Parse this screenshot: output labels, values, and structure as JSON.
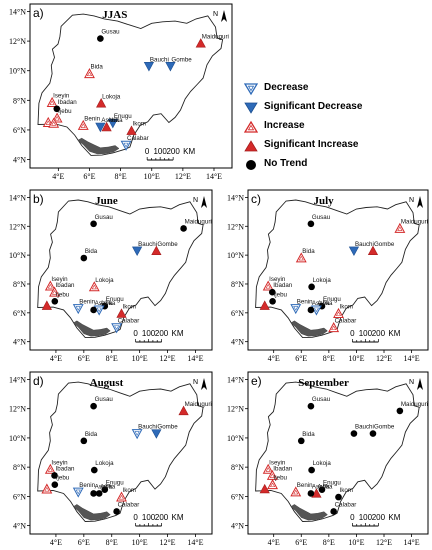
{
  "figure": {
    "panels": [
      {
        "id": "a",
        "letter": "a)",
        "title": "JJAS",
        "show_north": true,
        "stations": [
          {
            "name": "Gusau",
            "lat": 12.17,
            "lon": 6.7,
            "trend": "no-trend"
          },
          {
            "name": "Maiduguri",
            "lat": 11.85,
            "lon": 13.15,
            "trend": "significant-increase"
          },
          {
            "name": "Bauchi",
            "lat": 10.3,
            "lon": 9.82,
            "trend": "significant-decrease"
          },
          {
            "name": "Gombe",
            "lat": 10.3,
            "lon": 11.2,
            "trend": "significant-decrease"
          },
          {
            "name": "Bida",
            "lat": 9.8,
            "lon": 6.0,
            "trend": "increase"
          },
          {
            "name": "Iseyin",
            "lat": 7.85,
            "lon": 3.6,
            "trend": "increase"
          },
          {
            "name": "Ibadan",
            "lat": 7.43,
            "lon": 3.9,
            "trend": "no-trend"
          },
          {
            "name": "Lokoja",
            "lat": 7.8,
            "lon": 6.75,
            "trend": "significant-increase"
          },
          {
            "name": "Ijebu",
            "lat": 6.8,
            "lon": 3.92,
            "trend": "increase"
          },
          {
            "name": "Benin",
            "lat": 6.3,
            "lon": 5.6,
            "trend": "increase"
          },
          {
            "name": "Enugu",
            "lat": 6.46,
            "lon": 7.5,
            "trend": "significant-decrease"
          },
          {
            "name": "Awka",
            "lat": 6.2,
            "lon": 7.1,
            "trend": "significant-increase"
          },
          {
            "name": "Asaba",
            "lat": 6.2,
            "lon": 6.7,
            "trend": "significant-decrease"
          },
          {
            "name": "Ikom",
            "lat": 5.95,
            "lon": 8.7,
            "trend": "significant-increase"
          },
          {
            "name": "Calabar",
            "lat": 4.97,
            "lon": 8.35,
            "trend": "decrease"
          },
          {
            "name": "",
            "lat": 6.5,
            "lon": 3.35,
            "trend": "increase"
          },
          {
            "name": "",
            "lat": 6.45,
            "lon": 3.7,
            "trend": "increase"
          }
        ]
      },
      {
        "id": "b",
        "letter": "b)",
        "title": "June",
        "show_north": true,
        "stations": [
          {
            "name": "Gusau",
            "lat": 12.17,
            "lon": 6.7,
            "trend": "no-trend"
          },
          {
            "name": "Maiduguri",
            "lat": 11.85,
            "lon": 13.15,
            "trend": "no-trend"
          },
          {
            "name": "Bauchi",
            "lat": 10.3,
            "lon": 9.82,
            "trend": "significant-decrease"
          },
          {
            "name": "Gombe",
            "lat": 10.3,
            "lon": 11.2,
            "trend": "significant-increase"
          },
          {
            "name": "Bida",
            "lat": 9.8,
            "lon": 6.0,
            "trend": "no-trend"
          },
          {
            "name": "Iseyin",
            "lat": 7.85,
            "lon": 3.6,
            "trend": "increase"
          },
          {
            "name": "Ibadan",
            "lat": 7.43,
            "lon": 3.9,
            "trend": "increase"
          },
          {
            "name": "Lokoja",
            "lat": 7.8,
            "lon": 6.75,
            "trend": "increase"
          },
          {
            "name": "Ijebu",
            "lat": 6.8,
            "lon": 3.92,
            "trend": "no-trend"
          },
          {
            "name": "Benin",
            "lat": 6.3,
            "lon": 5.6,
            "trend": "decrease"
          },
          {
            "name": "Enugu",
            "lat": 6.46,
            "lon": 7.5,
            "trend": "no-trend"
          },
          {
            "name": "Awka",
            "lat": 6.2,
            "lon": 7.1,
            "trend": "decrease"
          },
          {
            "name": "Asaba",
            "lat": 6.2,
            "lon": 6.7,
            "trend": "no-trend"
          },
          {
            "name": "Ikom",
            "lat": 5.95,
            "lon": 8.7,
            "trend": "significant-increase"
          },
          {
            "name": "Calabar",
            "lat": 4.97,
            "lon": 8.35,
            "trend": "decrease"
          },
          {
            "name": "",
            "lat": 6.5,
            "lon": 3.35,
            "trend": "significant-increase"
          }
        ]
      },
      {
        "id": "c",
        "letter": "c)",
        "title": "July",
        "show_north": true,
        "stations": [
          {
            "name": "Gusau",
            "lat": 12.17,
            "lon": 6.7,
            "trend": "no-trend"
          },
          {
            "name": "Maiduguri",
            "lat": 11.85,
            "lon": 13.15,
            "trend": "increase"
          },
          {
            "name": "Bauchi",
            "lat": 10.3,
            "lon": 9.82,
            "trend": "significant-decrease"
          },
          {
            "name": "Gombe",
            "lat": 10.3,
            "lon": 11.2,
            "trend": "significant-increase"
          },
          {
            "name": "Bida",
            "lat": 9.8,
            "lon": 6.0,
            "trend": "increase"
          },
          {
            "name": "Iseyin",
            "lat": 7.85,
            "lon": 3.6,
            "trend": "increase"
          },
          {
            "name": "Ibadan",
            "lat": 7.43,
            "lon": 3.9,
            "trend": "no-trend"
          },
          {
            "name": "Lokoja",
            "lat": 7.8,
            "lon": 6.75,
            "trend": "no-trend"
          },
          {
            "name": "Ijebu",
            "lat": 6.8,
            "lon": 3.92,
            "trend": "no-trend"
          },
          {
            "name": "Benin",
            "lat": 6.3,
            "lon": 5.6,
            "trend": "decrease"
          },
          {
            "name": "Enugu",
            "lat": 6.46,
            "lon": 7.5,
            "trend": "no-trend"
          },
          {
            "name": "Awka",
            "lat": 6.2,
            "lon": 7.1,
            "trend": "decrease"
          },
          {
            "name": "Asaba",
            "lat": 6.2,
            "lon": 6.7,
            "trend": "no-trend"
          },
          {
            "name": "Ikom",
            "lat": 5.95,
            "lon": 8.7,
            "trend": "increase"
          },
          {
            "name": "Calabar",
            "lat": 4.97,
            "lon": 8.35,
            "trend": "increase"
          },
          {
            "name": "",
            "lat": 6.5,
            "lon": 3.35,
            "trend": "significant-increase"
          }
        ]
      },
      {
        "id": "d",
        "letter": "d)",
        "title": "August",
        "show_north": true,
        "stations": [
          {
            "name": "Gusau",
            "lat": 12.17,
            "lon": 6.7,
            "trend": "no-trend"
          },
          {
            "name": "Maiduguri",
            "lat": 11.85,
            "lon": 13.15,
            "trend": "significant-increase"
          },
          {
            "name": "Bauchi",
            "lat": 10.3,
            "lon": 9.82,
            "trend": "decrease"
          },
          {
            "name": "Gombe",
            "lat": 10.3,
            "lon": 11.2,
            "trend": "significant-decrease"
          },
          {
            "name": "Bida",
            "lat": 9.8,
            "lon": 6.0,
            "trend": "no-trend"
          },
          {
            "name": "Iseyin",
            "lat": 7.85,
            "lon": 3.6,
            "trend": "increase"
          },
          {
            "name": "Ibadan",
            "lat": 7.43,
            "lon": 3.9,
            "trend": "no-trend"
          },
          {
            "name": "Lokoja",
            "lat": 7.8,
            "lon": 6.75,
            "trend": "no-trend"
          },
          {
            "name": "Ijebu",
            "lat": 6.8,
            "lon": 3.92,
            "trend": "no-trend"
          },
          {
            "name": "Benin",
            "lat": 6.3,
            "lon": 5.6,
            "trend": "decrease"
          },
          {
            "name": "Enugu",
            "lat": 6.46,
            "lon": 7.5,
            "trend": "no-trend"
          },
          {
            "name": "Awka",
            "lat": 6.2,
            "lon": 7.1,
            "trend": "no-trend"
          },
          {
            "name": "Asaba",
            "lat": 6.2,
            "lon": 6.7,
            "trend": "no-trend"
          },
          {
            "name": "Ikom",
            "lat": 5.95,
            "lon": 8.7,
            "trend": "increase"
          },
          {
            "name": "Calabar",
            "lat": 4.97,
            "lon": 8.35,
            "trend": "no-trend"
          },
          {
            "name": "",
            "lat": 6.5,
            "lon": 3.35,
            "trend": "increase"
          }
        ]
      },
      {
        "id": "e",
        "letter": "e)",
        "title": "September",
        "show_north": true,
        "stations": [
          {
            "name": "Gusau",
            "lat": 12.17,
            "lon": 6.7,
            "trend": "no-trend"
          },
          {
            "name": "Maiduguri",
            "lat": 11.85,
            "lon": 13.15,
            "trend": "no-trend"
          },
          {
            "name": "Bauchi",
            "lat": 10.3,
            "lon": 9.82,
            "trend": "no-trend"
          },
          {
            "name": "Gombe",
            "lat": 10.3,
            "lon": 11.2,
            "trend": "no-trend"
          },
          {
            "name": "Bida",
            "lat": 9.8,
            "lon": 6.0,
            "trend": "no-trend"
          },
          {
            "name": "Iseyin",
            "lat": 7.85,
            "lon": 3.6,
            "trend": "increase"
          },
          {
            "name": "Ibadan",
            "lat": 7.43,
            "lon": 3.9,
            "trend": "increase"
          },
          {
            "name": "Lokoja",
            "lat": 7.8,
            "lon": 6.75,
            "trend": "no-trend"
          },
          {
            "name": "Ijebu",
            "lat": 6.8,
            "lon": 3.92,
            "trend": "increase"
          },
          {
            "name": "Benin",
            "lat": 6.3,
            "lon": 5.6,
            "trend": "increase"
          },
          {
            "name": "Enugu",
            "lat": 6.46,
            "lon": 7.5,
            "trend": "no-trend"
          },
          {
            "name": "Awka",
            "lat": 6.2,
            "lon": 7.1,
            "trend": "significant-increase"
          },
          {
            "name": "Asaba",
            "lat": 6.2,
            "lon": 6.7,
            "trend": "no-trend"
          },
          {
            "name": "Ikom",
            "lat": 5.95,
            "lon": 8.7,
            "trend": "no-trend"
          },
          {
            "name": "Calabar",
            "lat": 4.97,
            "lon": 8.35,
            "trend": "no-trend"
          },
          {
            "name": "",
            "lat": 6.5,
            "lon": 3.35,
            "trend": "significant-increase"
          }
        ]
      }
    ],
    "x_ticks": [
      {
        "value": 4,
        "label": "4°E"
      },
      {
        "value": 6,
        "label": "6°E"
      },
      {
        "value": 8,
        "label": "8°E"
      },
      {
        "value": 10,
        "label": "10°E"
      },
      {
        "value": 12,
        "label": "12°E"
      },
      {
        "value": 14,
        "label": "14°E"
      }
    ],
    "y_ticks": [
      {
        "value": 4,
        "label": "4°N"
      },
      {
        "value": 6,
        "label": "6°N"
      },
      {
        "value": 8,
        "label": "8°N"
      },
      {
        "value": 10,
        "label": "10°N"
      },
      {
        "value": 12,
        "label": "12°N"
      },
      {
        "value": 14,
        "label": "14°N"
      }
    ],
    "scale_bar": {
      "labels": [
        "0",
        "100",
        "200"
      ],
      "unit": "KM"
    },
    "north_label": "N",
    "legend": [
      {
        "symbol": "decrease",
        "label": "Decrease"
      },
      {
        "symbol": "significant-decrease",
        "label": "Significant Decrease"
      },
      {
        "symbol": "increase",
        "label": "Increase"
      },
      {
        "symbol": "significant-increase",
        "label": "Significant Increase"
      },
      {
        "symbol": "no-trend",
        "label": "No Trend"
      }
    ],
    "colors": {
      "decrease": "#2e6ab8",
      "increase": "#d42a2a",
      "no_trend": "#000000",
      "land": "#ffffff",
      "delta": "#555555"
    }
  }
}
